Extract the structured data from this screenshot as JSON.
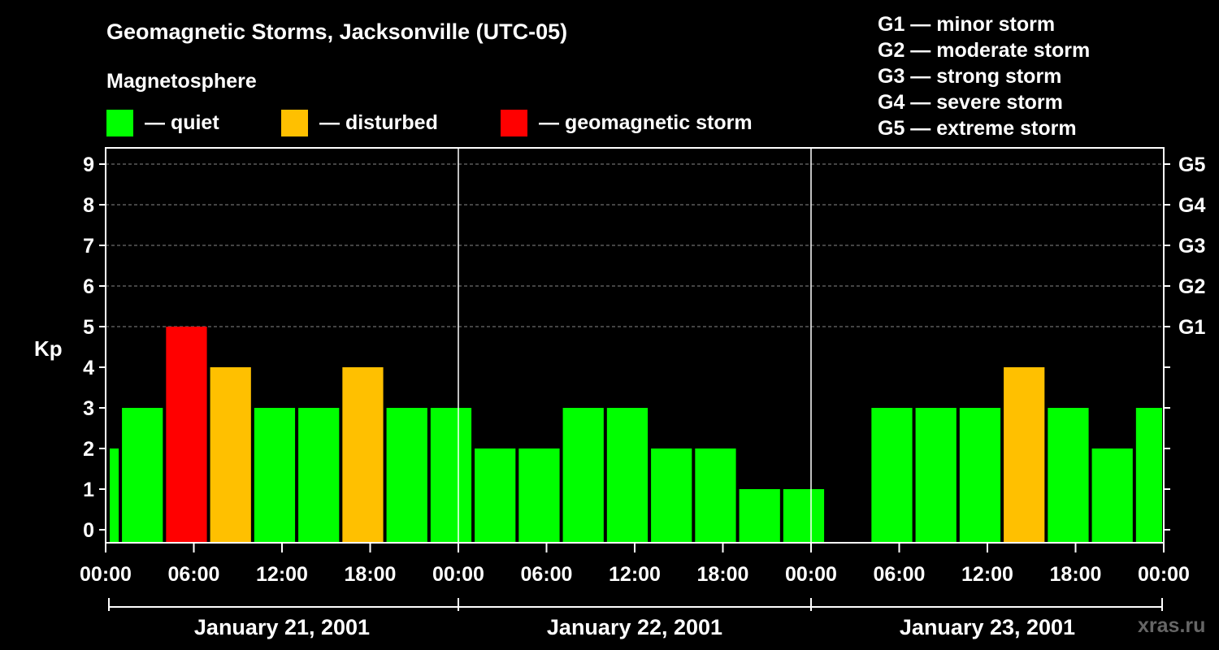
{
  "title": "Geomagnetic Storms, Jacksonville (UTC-05)",
  "subtitle": "Magnetosphere",
  "legend": [
    {
      "label": "— quiet",
      "color": "#00ff00"
    },
    {
      "label": "— disturbed",
      "color": "#ffc000"
    },
    {
      "label": "— geomagnetic storm",
      "color": "#ff0000"
    }
  ],
  "g_scale": [
    "G1 — minor storm",
    "G2 — moderate storm",
    "G3 — strong storm",
    "G4 — severe storm",
    "G5 — extreme storm"
  ],
  "watermark": "xras.ru",
  "chart_data": {
    "type": "bar",
    "ylabel": "Kp",
    "ylim": [
      0,
      9
    ],
    "yticks": [
      "0",
      "1",
      "2",
      "3",
      "4",
      "5",
      "6",
      "7",
      "8",
      "9"
    ],
    "right_ticks": [
      {
        "value": 5,
        "label": "G1"
      },
      {
        "value": 6,
        "label": "G2"
      },
      {
        "value": 7,
        "label": "G3"
      },
      {
        "value": 8,
        "label": "G4"
      },
      {
        "value": 9,
        "label": "G5"
      }
    ],
    "xtick_labels": [
      "00:00",
      "06:00",
      "12:00",
      "18:00",
      "00:00",
      "06:00",
      "12:00",
      "18:00",
      "00:00",
      "06:00",
      "12:00",
      "18:00",
      "00:00"
    ],
    "days": [
      "January 21, 2001",
      "January 22, 2001",
      "January 23, 2001"
    ],
    "grid": "dashed horizontal at 5–9",
    "colors": {
      "quiet": "#00ff00",
      "disturbed": "#ffc000",
      "storm": "#ff0000"
    },
    "bars": [
      {
        "start": "2001-01-20T22:00",
        "end": "2001-01-21T01:00",
        "kp": 2,
        "level": "quiet"
      },
      {
        "start": "2001-01-21T01:00",
        "end": "2001-01-21T04:00",
        "kp": 3,
        "level": "quiet"
      },
      {
        "start": "2001-01-21T04:00",
        "end": "2001-01-21T07:00",
        "kp": 5,
        "level": "storm"
      },
      {
        "start": "2001-01-21T07:00",
        "end": "2001-01-21T10:00",
        "kp": 4,
        "level": "disturbed"
      },
      {
        "start": "2001-01-21T10:00",
        "end": "2001-01-21T13:00",
        "kp": 3,
        "level": "quiet"
      },
      {
        "start": "2001-01-21T13:00",
        "end": "2001-01-21T16:00",
        "kp": 3,
        "level": "quiet"
      },
      {
        "start": "2001-01-21T16:00",
        "end": "2001-01-21T19:00",
        "kp": 4,
        "level": "disturbed"
      },
      {
        "start": "2001-01-21T19:00",
        "end": "2001-01-21T22:00",
        "kp": 3,
        "level": "quiet"
      },
      {
        "start": "2001-01-21T22:00",
        "end": "2001-01-22T01:00",
        "kp": 3,
        "level": "quiet"
      },
      {
        "start": "2001-01-22T01:00",
        "end": "2001-01-22T04:00",
        "kp": 2,
        "level": "quiet"
      },
      {
        "start": "2001-01-22T04:00",
        "end": "2001-01-22T07:00",
        "kp": 2,
        "level": "quiet"
      },
      {
        "start": "2001-01-22T07:00",
        "end": "2001-01-22T10:00",
        "kp": 3,
        "level": "quiet"
      },
      {
        "start": "2001-01-22T10:00",
        "end": "2001-01-22T13:00",
        "kp": 3,
        "level": "quiet"
      },
      {
        "start": "2001-01-22T13:00",
        "end": "2001-01-22T16:00",
        "kp": 2,
        "level": "quiet"
      },
      {
        "start": "2001-01-22T16:00",
        "end": "2001-01-22T19:00",
        "kp": 2,
        "level": "quiet"
      },
      {
        "start": "2001-01-22T19:00",
        "end": "2001-01-22T22:00",
        "kp": 1,
        "level": "quiet"
      },
      {
        "start": "2001-01-22T22:00",
        "end": "2001-01-23T01:00",
        "kp": 1,
        "level": "quiet"
      },
      {
        "start": "2001-01-23T04:00",
        "end": "2001-01-23T07:00",
        "kp": 3,
        "level": "quiet"
      },
      {
        "start": "2001-01-23T07:00",
        "end": "2001-01-23T10:00",
        "kp": 3,
        "level": "quiet"
      },
      {
        "start": "2001-01-23T10:00",
        "end": "2001-01-23T13:00",
        "kp": 3,
        "level": "quiet"
      },
      {
        "start": "2001-01-23T13:00",
        "end": "2001-01-23T16:00",
        "kp": 4,
        "level": "disturbed"
      },
      {
        "start": "2001-01-23T16:00",
        "end": "2001-01-23T19:00",
        "kp": 3,
        "level": "quiet"
      },
      {
        "start": "2001-01-23T19:00",
        "end": "2001-01-23T22:00",
        "kp": 2,
        "level": "quiet"
      },
      {
        "start": "2001-01-23T22:00",
        "end": "2001-01-24T01:00",
        "kp": 3,
        "level": "quiet"
      }
    ]
  }
}
